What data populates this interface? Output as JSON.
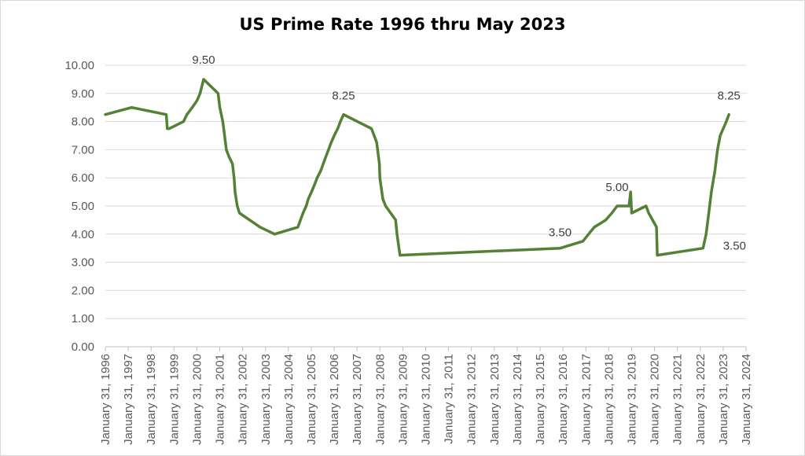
{
  "chart_data": {
    "type": "line",
    "title": "US Prime Rate 1996 thru May 2023",
    "xlabel": "",
    "ylabel": "",
    "ylim": [
      0,
      10
    ],
    "y_ticks": [
      "0.00",
      "1.00",
      "2.00",
      "3.00",
      "4.00",
      "5.00",
      "6.00",
      "7.00",
      "8.00",
      "9.00",
      "10.00"
    ],
    "x_range": [
      "1996-01-31",
      "2024-01-31"
    ],
    "x_ticks": [
      "January 31, 1996",
      "January 31, 1997",
      "January 31, 1998",
      "January 31, 1999",
      "January 31, 2000",
      "January 31, 2001",
      "January 31, 2002",
      "January 31, 2003",
      "January 31, 2004",
      "January 31, 2005",
      "January 31, 2006",
      "January 31, 2007",
      "January 31, 2008",
      "January 31, 2009",
      "January 31, 2010",
      "January 31, 2011",
      "January 31, 2012",
      "January 31, 2013",
      "January 31, 2014",
      "January 31, 2015",
      "January 31, 2016",
      "January 31, 2017",
      "January 31, 2018",
      "January 31, 2019",
      "January 31, 2020",
      "January 31, 2021",
      "January 31, 2022",
      "January 31, 2023",
      "January 31, 2024"
    ],
    "grid": true,
    "legend": "none",
    "line_color": "#538135",
    "series": [
      {
        "points": [
          [
            "1996-01-31",
            8.25
          ],
          [
            "1997-03-26",
            8.5
          ],
          [
            "1998-09-30",
            8.25
          ],
          [
            "1998-10-16",
            7.75
          ],
          [
            "1998-11-18",
            7.75
          ],
          [
            "1999-07-01",
            8.0
          ],
          [
            "1999-08-25",
            8.25
          ],
          [
            "1999-11-17",
            8.5
          ],
          [
            "2000-02-03",
            8.75
          ],
          [
            "2000-03-22",
            9.0
          ],
          [
            "2000-05-17",
            9.5
          ],
          [
            "2001-01-03",
            9.0
          ],
          [
            "2001-01-31",
            8.5
          ],
          [
            "2001-03-20",
            8.0
          ],
          [
            "2001-04-18",
            7.5
          ],
          [
            "2001-05-15",
            7.0
          ],
          [
            "2001-06-27",
            6.75
          ],
          [
            "2001-08-21",
            6.5
          ],
          [
            "2001-09-17",
            6.0
          ],
          [
            "2001-10-02",
            5.5
          ],
          [
            "2001-11-06",
            5.0
          ],
          [
            "2001-12-11",
            4.75
          ],
          [
            "2002-11-06",
            4.25
          ],
          [
            "2003-06-25",
            4.0
          ],
          [
            "2004-06-30",
            4.25
          ],
          [
            "2004-08-10",
            4.5
          ],
          [
            "2004-09-21",
            4.75
          ],
          [
            "2004-11-10",
            5.0
          ],
          [
            "2004-12-14",
            5.25
          ],
          [
            "2005-02-02",
            5.5
          ],
          [
            "2005-03-22",
            5.75
          ],
          [
            "2005-05-03",
            6.0
          ],
          [
            "2005-06-30",
            6.25
          ],
          [
            "2005-08-09",
            6.5
          ],
          [
            "2005-09-20",
            6.75
          ],
          [
            "2005-11-01",
            7.0
          ],
          [
            "2005-12-13",
            7.25
          ],
          [
            "2006-01-31",
            7.5
          ],
          [
            "2006-03-28",
            7.75
          ],
          [
            "2006-05-10",
            8.0
          ],
          [
            "2006-06-29",
            8.25
          ],
          [
            "2007-09-18",
            7.75
          ],
          [
            "2007-10-31",
            7.5
          ],
          [
            "2007-12-11",
            7.25
          ],
          [
            "2008-01-22",
            6.5
          ],
          [
            "2008-01-30",
            6.0
          ],
          [
            "2008-03-18",
            5.25
          ],
          [
            "2008-04-30",
            5.0
          ],
          [
            "2008-10-08",
            4.5
          ],
          [
            "2008-10-29",
            4.0
          ],
          [
            "2008-12-16",
            3.25
          ],
          [
            "2015-12-16",
            3.5
          ],
          [
            "2016-12-14",
            3.75
          ],
          [
            "2017-03-15",
            4.0
          ],
          [
            "2017-06-14",
            4.25
          ],
          [
            "2017-12-13",
            4.5
          ],
          [
            "2018-03-21",
            4.75
          ],
          [
            "2018-06-13",
            5.0
          ],
          [
            "2018-12-19",
            5.0
          ],
          [
            "2019-01-15",
            5.5
          ],
          [
            "2019-01-31",
            4.75
          ],
          [
            "2019-09-18",
            5.0
          ],
          [
            "2019-10-30",
            4.75
          ],
          [
            "2020-03-03",
            4.25
          ],
          [
            "2020-03-15",
            3.25
          ],
          [
            "2022-03-16",
            3.5
          ],
          [
            "2022-05-04",
            4.0
          ],
          [
            "2022-06-15",
            4.75
          ],
          [
            "2022-07-27",
            5.5
          ],
          [
            "2022-09-21",
            6.25
          ],
          [
            "2022-11-02",
            7.0
          ],
          [
            "2022-12-14",
            7.5
          ],
          [
            "2023-02-01",
            7.75
          ],
          [
            "2023-03-22",
            8.0
          ],
          [
            "2023-05-03",
            8.25
          ]
        ]
      }
    ],
    "annotations": [
      {
        "text": "9.50",
        "x": "2000-05-17",
        "y": 9.5
      },
      {
        "text": "8.25",
        "x": "2006-06-29",
        "y": 8.25
      },
      {
        "text": "3.50",
        "x": "2015-12-16",
        "y": 3.5
      },
      {
        "text": "5.00",
        "x": "2018-06-13",
        "y": 5.0
      },
      {
        "text": "3.50",
        "x": "2022-03-16",
        "y": 3.5
      },
      {
        "text": "8.25",
        "x": "2023-05-03",
        "y": 8.25
      }
    ]
  }
}
